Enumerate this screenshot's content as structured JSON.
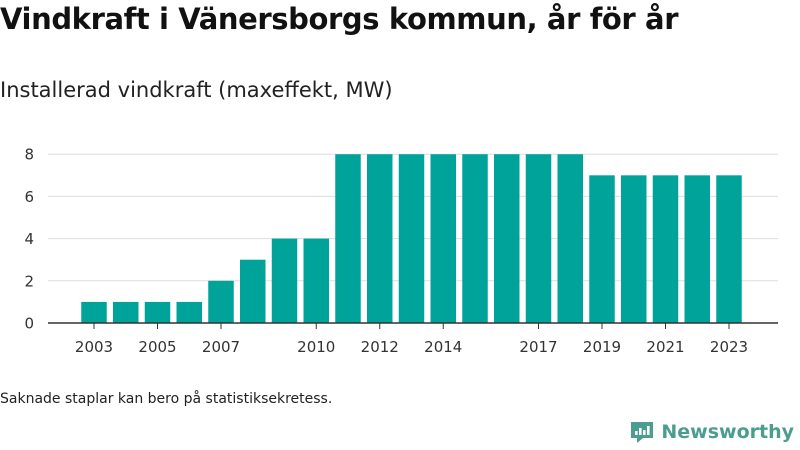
{
  "header": {
    "title": "Vindkraft i Vänersborgs kommun, år för år",
    "subtitle": "Installerad vindkraft (maxeffekt, MW)"
  },
  "footer": {
    "note": "Saknade staplar kan bero på statistiksekretess.",
    "brand": "Newsworthy",
    "brand_icon": "newsworthy-logo-icon"
  },
  "colors": {
    "bar": "#00a39a",
    "grid": "#dddddd",
    "axis": "#333333",
    "brand": "#4a9d8f"
  },
  "chart_data": {
    "type": "bar",
    "categories": [
      "2003",
      "2004",
      "2005",
      "2006",
      "2007",
      "2008",
      "2009",
      "2010",
      "2011",
      "2012",
      "2013",
      "2014",
      "2015",
      "2016",
      "2017",
      "2018",
      "2019",
      "2020",
      "2021",
      "2022",
      "2023"
    ],
    "values": [
      1,
      1,
      1,
      1,
      2,
      3,
      4,
      4,
      8,
      8,
      8,
      8,
      8,
      8,
      8,
      8,
      7,
      7,
      7,
      7,
      7
    ],
    "x_tick_labels": [
      "2003",
      "2005",
      "2007",
      "2010",
      "2012",
      "2014",
      "2017",
      "2019",
      "2021",
      "2023"
    ],
    "y_ticks": [
      0,
      2,
      4,
      6,
      8
    ],
    "ylim": [
      0,
      8.2
    ],
    "title": "Vindkraft i Vänersborgs kommun, år för år",
    "subtitle": "Installerad vindkraft (maxeffekt, MW)",
    "xlabel": "",
    "ylabel": "",
    "grid": true,
    "legend": "none"
  }
}
